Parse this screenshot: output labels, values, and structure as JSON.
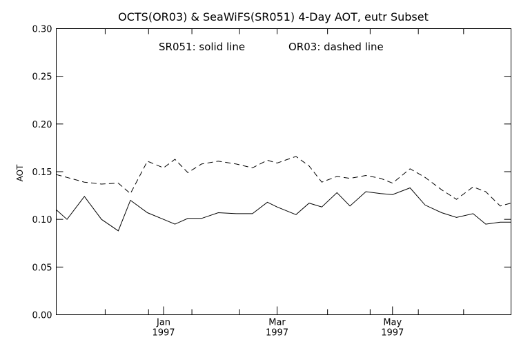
{
  "chart_data": {
    "type": "line",
    "title": "OCTS(OR03) & SeaWiFS(SR051) 4-Day AOT, eutr Subset",
    "annotation": {
      "solid": "SR051: solid line",
      "dashed": "OR03: dashed line"
    },
    "xlabel": "",
    "ylabel": "AOT",
    "ylim": [
      0.0,
      0.3
    ],
    "yticks": [
      "0.00",
      "0.05",
      "0.10",
      "0.15",
      "0.20",
      "0.25",
      "0.30"
    ],
    "xticks": [
      {
        "label": "Jan",
        "year": "1997",
        "value": 55.7
      },
      {
        "label": "Mar",
        "year": "1997",
        "value": 114.6
      },
      {
        "label": "May",
        "year": "1997",
        "value": 174.5
      }
    ],
    "xlim": [
      0,
      236
    ],
    "minor_xticks": [
      0,
      25.4,
      47.9,
      70.4,
      95.1,
      114.6,
      140.8,
      162.9,
      187.9,
      211.4,
      236
    ],
    "series": [
      {
        "name": "SR051",
        "style": "solid",
        "x": [
          0,
          5.6,
          14.6,
          23.5,
          32.2,
          38.5,
          47.3,
          55.7,
          61.6,
          68.3,
          75.4,
          84.1,
          93.4,
          101.8,
          109.6,
          114.6,
          124.4,
          131.2,
          137.8,
          145.7,
          152.4,
          160.7,
          168.3,
          174.5,
          183.6,
          191.4,
          200.0,
          207.7,
          216.3,
          222.9,
          230.4,
          236
        ],
        "values": [
          0.11,
          0.1,
          0.124,
          0.1,
          0.088,
          0.12,
          0.107,
          0.1,
          0.095,
          0.101,
          0.101,
          0.107,
          0.106,
          0.106,
          0.118,
          0.113,
          0.105,
          0.117,
          0.113,
          0.128,
          0.114,
          0.129,
          0.127,
          0.126,
          0.133,
          0.115,
          0.107,
          0.102,
          0.106,
          0.095,
          0.097,
          0.097
        ]
      },
      {
        "name": "OR03",
        "style": "dashed",
        "x": [
          0,
          5.6,
          14.6,
          23.5,
          32.2,
          38.5,
          47.3,
          55.7,
          61.6,
          68.3,
          75.4,
          84.1,
          93.4,
          101.8,
          109.6,
          114.6,
          124.4,
          131.2,
          137.8,
          145.7,
          152.4,
          160.7,
          168.3,
          174.5,
          183.6,
          191.4,
          200.0,
          207.7,
          216.3,
          222.9,
          230.4,
          236
        ],
        "values": [
          0.147,
          0.144,
          0.139,
          0.137,
          0.138,
          0.127,
          0.161,
          0.154,
          0.163,
          0.149,
          0.158,
          0.161,
          0.158,
          0.154,
          0.162,
          0.159,
          0.166,
          0.156,
          0.139,
          0.145,
          0.143,
          0.146,
          0.143,
          0.138,
          0.153,
          0.144,
          0.131,
          0.121,
          0.134,
          0.129,
          0.114,
          0.117
        ]
      }
    ],
    "grid": false,
    "legend": "none"
  }
}
